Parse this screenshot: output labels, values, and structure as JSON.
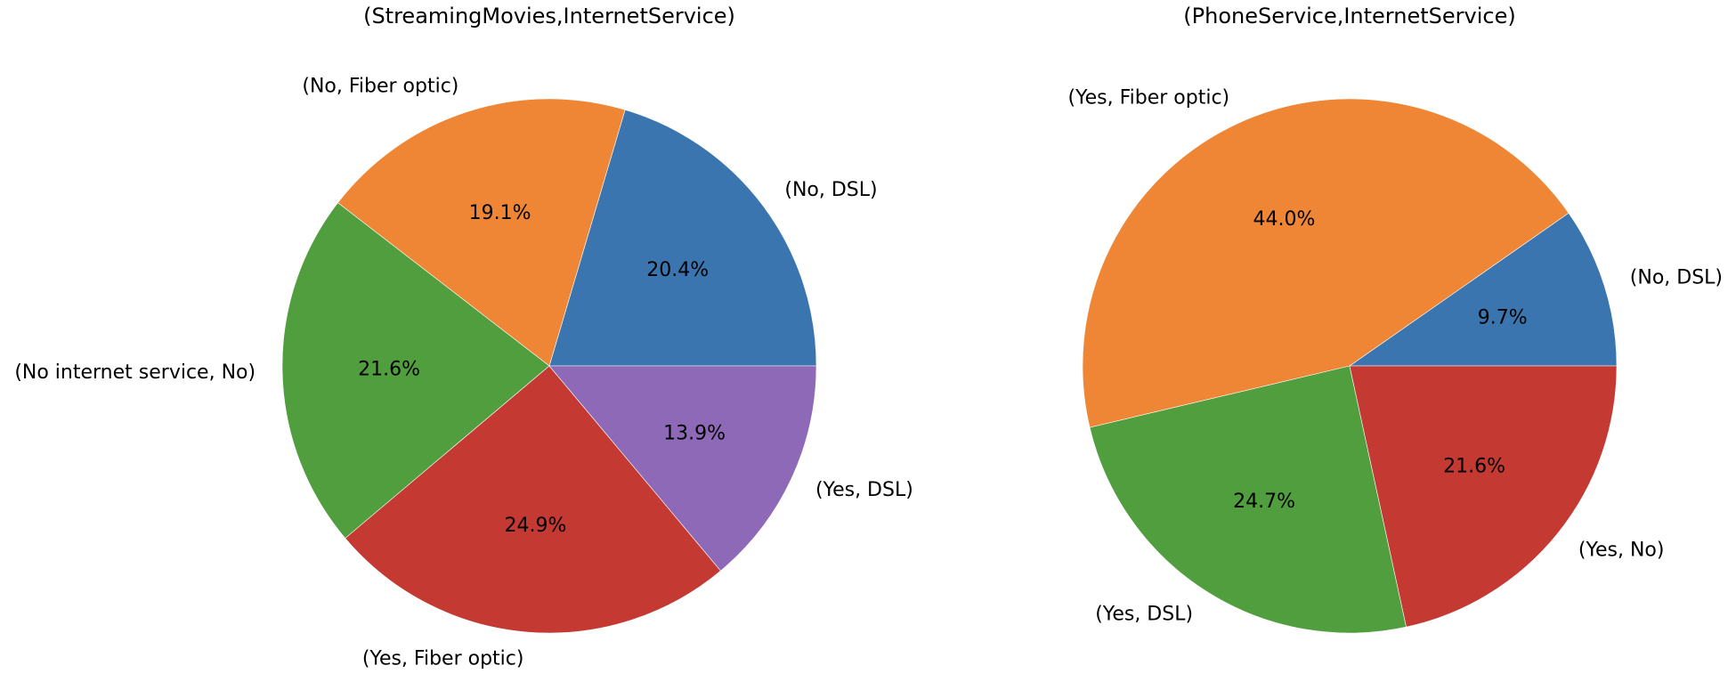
{
  "chart_data": [
    {
      "type": "pie",
      "title": "(StreamingMovies,InternetService)",
      "categories": [
        "(No, DSL)",
        "(No, Fiber optic)",
        "(No internet service, No)",
        "(Yes, Fiber optic)",
        "(Yes, DSL)"
      ],
      "values": [
        20.4,
        19.1,
        21.6,
        24.9,
        13.9
      ],
      "value_labels": [
        "20.4%",
        "19.1%",
        "21.6%",
        "24.9%",
        "13.9%"
      ],
      "colors": [
        "#3a75af",
        "#ef8636",
        "#519e3e",
        "#c43932",
        "#8d69b8"
      ],
      "start_angle_deg": 0,
      "direction": "counterclockwise",
      "legend": "none"
    },
    {
      "type": "pie",
      "title": "(PhoneService,InternetService)",
      "categories": [
        "(No, DSL)",
        "(Yes, Fiber optic)",
        "(Yes, DSL)",
        "(Yes, No)"
      ],
      "values": [
        9.7,
        44.0,
        24.7,
        21.6
      ],
      "value_labels": [
        "9.7%",
        "44.0%",
        "24.7%",
        "21.6%"
      ],
      "colors": [
        "#3a75af",
        "#ef8636",
        "#519e3e",
        "#c43932"
      ],
      "start_angle_deg": 0,
      "direction": "counterclockwise",
      "legend": "none"
    }
  ]
}
